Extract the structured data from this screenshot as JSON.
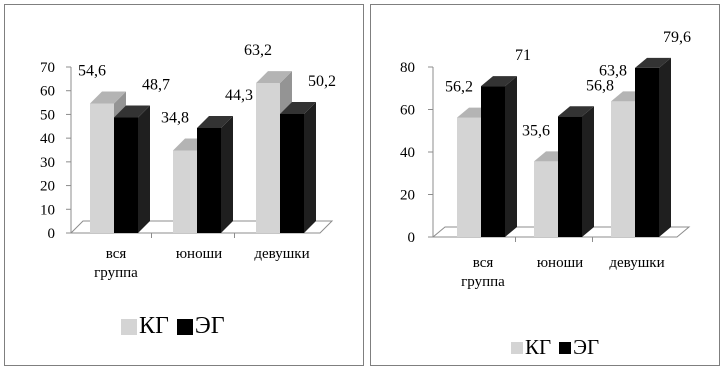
{
  "chart_data": [
    {
      "type": "bar",
      "categories": [
        [
          "вся",
          "группа"
        ],
        [
          "юноши"
        ],
        [
          "девушки"
        ]
      ],
      "series": [
        {
          "name": "КГ",
          "values": [
            54.6,
            34.8,
            63.2
          ],
          "labels": [
            "54,6",
            "34,8",
            "63,2"
          ],
          "color": "#d4d4d4"
        },
        {
          "name": "ЭГ",
          "values": [
            48.7,
            44.3,
            50.2
          ],
          "labels": [
            "48,7",
            "44,3",
            "50,2"
          ],
          "color": "#000000"
        }
      ],
      "ylim": [
        0,
        70
      ],
      "yticks": [
        "0",
        "10",
        "20",
        "30",
        "40",
        "50",
        "60",
        "70"
      ],
      "legend_position": "bottom",
      "grid": false
    },
    {
      "type": "bar",
      "categories": [
        [
          "вся",
          "группа"
        ],
        [
          "юноши"
        ],
        [
          "девушки"
        ]
      ],
      "series": [
        {
          "name": "КГ",
          "values": [
            56.2,
            35.6,
            63.8
          ],
          "labels": [
            "56,2",
            "35,6",
            "63,8"
          ],
          "color": "#d4d4d4"
        },
        {
          "name": "ЭГ",
          "values": [
            71,
            56.8,
            79.6
          ],
          "labels": [
            "71",
            "56,8",
            "79,6"
          ],
          "color": "#000000"
        }
      ],
      "ylim": [
        0,
        80
      ],
      "yticks": [
        "0",
        "20",
        "40",
        "60",
        "80"
      ],
      "legend_position": "bottom",
      "grid": false
    }
  ]
}
